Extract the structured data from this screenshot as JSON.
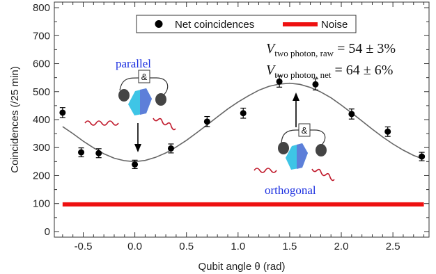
{
  "chart_data": {
    "type": "scatter",
    "xlabel": "Qubit angle θ (rad)",
    "ylabel": "Coincidences (/25 min)",
    "xlim": [
      -0.78,
      2.85
    ],
    "ylim": [
      -20,
      820
    ],
    "xticks": [
      -0.5,
      0.0,
      0.5,
      1.0,
      1.5,
      2.0,
      2.5
    ],
    "xtick_labels": [
      "-0.5",
      "0.0",
      "0.5",
      "1.0",
      "1.5",
      "2.0",
      "2.5"
    ],
    "yticks": [
      0,
      100,
      200,
      300,
      400,
      500,
      600,
      700,
      800
    ],
    "ytick_labels": [
      "0",
      "100",
      "200",
      "300",
      "400",
      "500",
      "600",
      "700",
      "800"
    ],
    "grid": false,
    "legend_position": "top-center",
    "series": [
      {
        "name": "Net coincidences",
        "marker": "circle",
        "color": "#000000",
        "x": [
          -0.7,
          -0.52,
          -0.35,
          0.0,
          0.35,
          0.7,
          1.05,
          1.4,
          1.75,
          2.1,
          2.45,
          2.78
        ],
        "y": [
          425,
          283,
          280,
          240,
          297,
          393,
          423,
          536,
          526,
          420,
          357,
          268
        ],
        "yerr": [
          18,
          16,
          16,
          15,
          16,
          18,
          18,
          20,
          20,
          18,
          17,
          15
        ]
      },
      {
        "name": "Noise",
        "type": "line",
        "color": "#ee1111",
        "x": [
          -0.7,
          2.8
        ],
        "y": [
          97,
          97
        ]
      }
    ],
    "fit_curve": {
      "color": "#666666",
      "x": [
        -0.7,
        -0.6,
        -0.5,
        -0.4,
        -0.3,
        -0.2,
        -0.1,
        0.0,
        0.1,
        0.2,
        0.3,
        0.4,
        0.5,
        0.6,
        0.7,
        0.8,
        0.9,
        1.0,
        1.1,
        1.2,
        1.3,
        1.4,
        1.5,
        1.6,
        1.7,
        1.8,
        1.9,
        2.0,
        2.1,
        2.2,
        2.3,
        2.4,
        2.5,
        2.6,
        2.7,
        2.78
      ],
      "y": [
        375,
        350,
        323,
        299,
        278,
        262,
        253,
        250,
        254,
        265,
        281,
        302,
        326,
        353,
        381,
        410,
        438,
        463,
        485,
        505,
        519,
        527,
        530,
        526,
        515,
        499,
        478,
        452,
        424,
        395,
        366,
        338,
        313,
        291,
        272,
        261
      ]
    },
    "annotations": {
      "formula_raw": {
        "main": "V",
        "sub": "two photon, raw",
        "rest": " = 54 ± 3%"
      },
      "formula_net": {
        "main": "V",
        "sub": "two photon, net",
        "rest": " = 64 ± 6%"
      },
      "label_parallel": "parallel",
      "label_orthogonal": "orthogonal",
      "and_symbol": "&"
    }
  }
}
